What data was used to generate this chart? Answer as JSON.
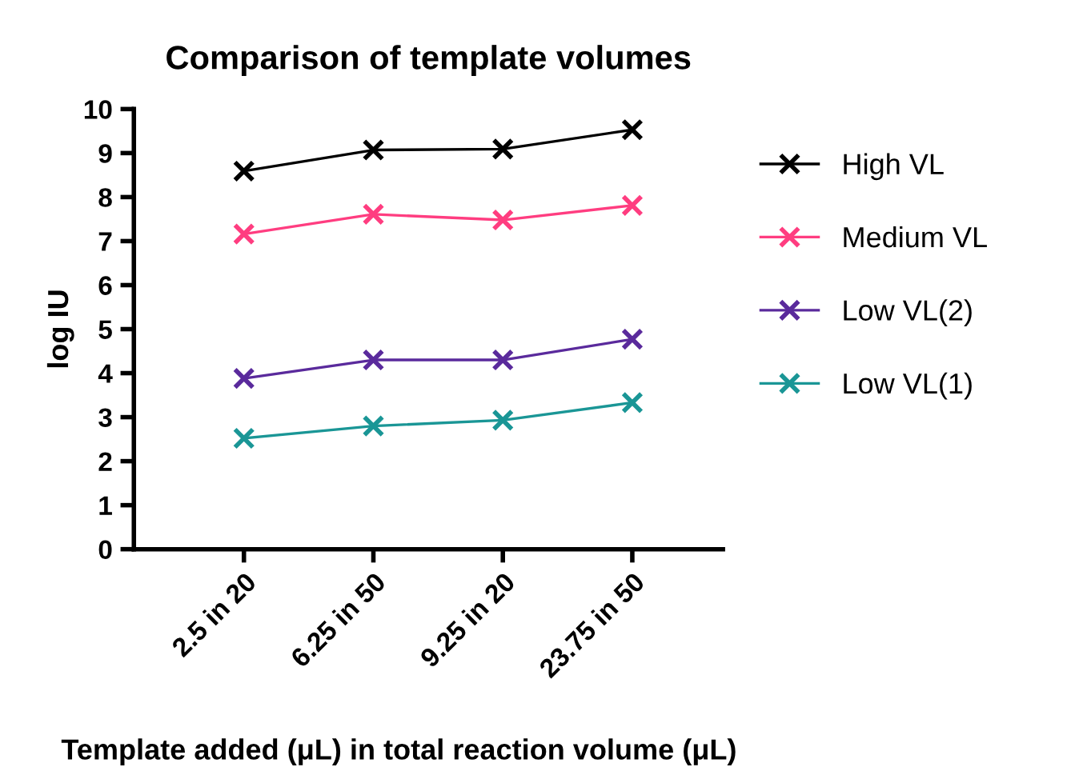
{
  "chart_data": {
    "type": "line",
    "title": "Comparison of template volumes",
    "xlabel": "Template added (μL) in total reaction volume (μL)",
    "ylabel": "log IU",
    "categories": [
      "2.5 in 20",
      "6.25 in 50",
      "9.25 in 20",
      "23.75 in 50"
    ],
    "series": [
      {
        "name": "High VL",
        "color": "#000000",
        "values": [
          8.59,
          9.07,
          9.09,
          9.53
        ]
      },
      {
        "name": "Medium VL",
        "color": "#ff3d80",
        "values": [
          7.16,
          7.61,
          7.48,
          7.81
        ]
      },
      {
        "name": "Low VL(2)",
        "color": "#5a2a9c",
        "values": [
          3.88,
          4.3,
          4.3,
          4.77
        ]
      },
      {
        "name": "Low VL(1)",
        "color": "#1a9696",
        "values": [
          2.52,
          2.8,
          2.93,
          3.33
        ]
      }
    ],
    "ylim": [
      0,
      10
    ],
    "yticks": [
      0,
      1,
      2,
      3,
      4,
      5,
      6,
      7,
      8,
      9,
      10
    ],
    "marker": "cross",
    "line_style": "solid",
    "grid": false,
    "legend": "right"
  }
}
